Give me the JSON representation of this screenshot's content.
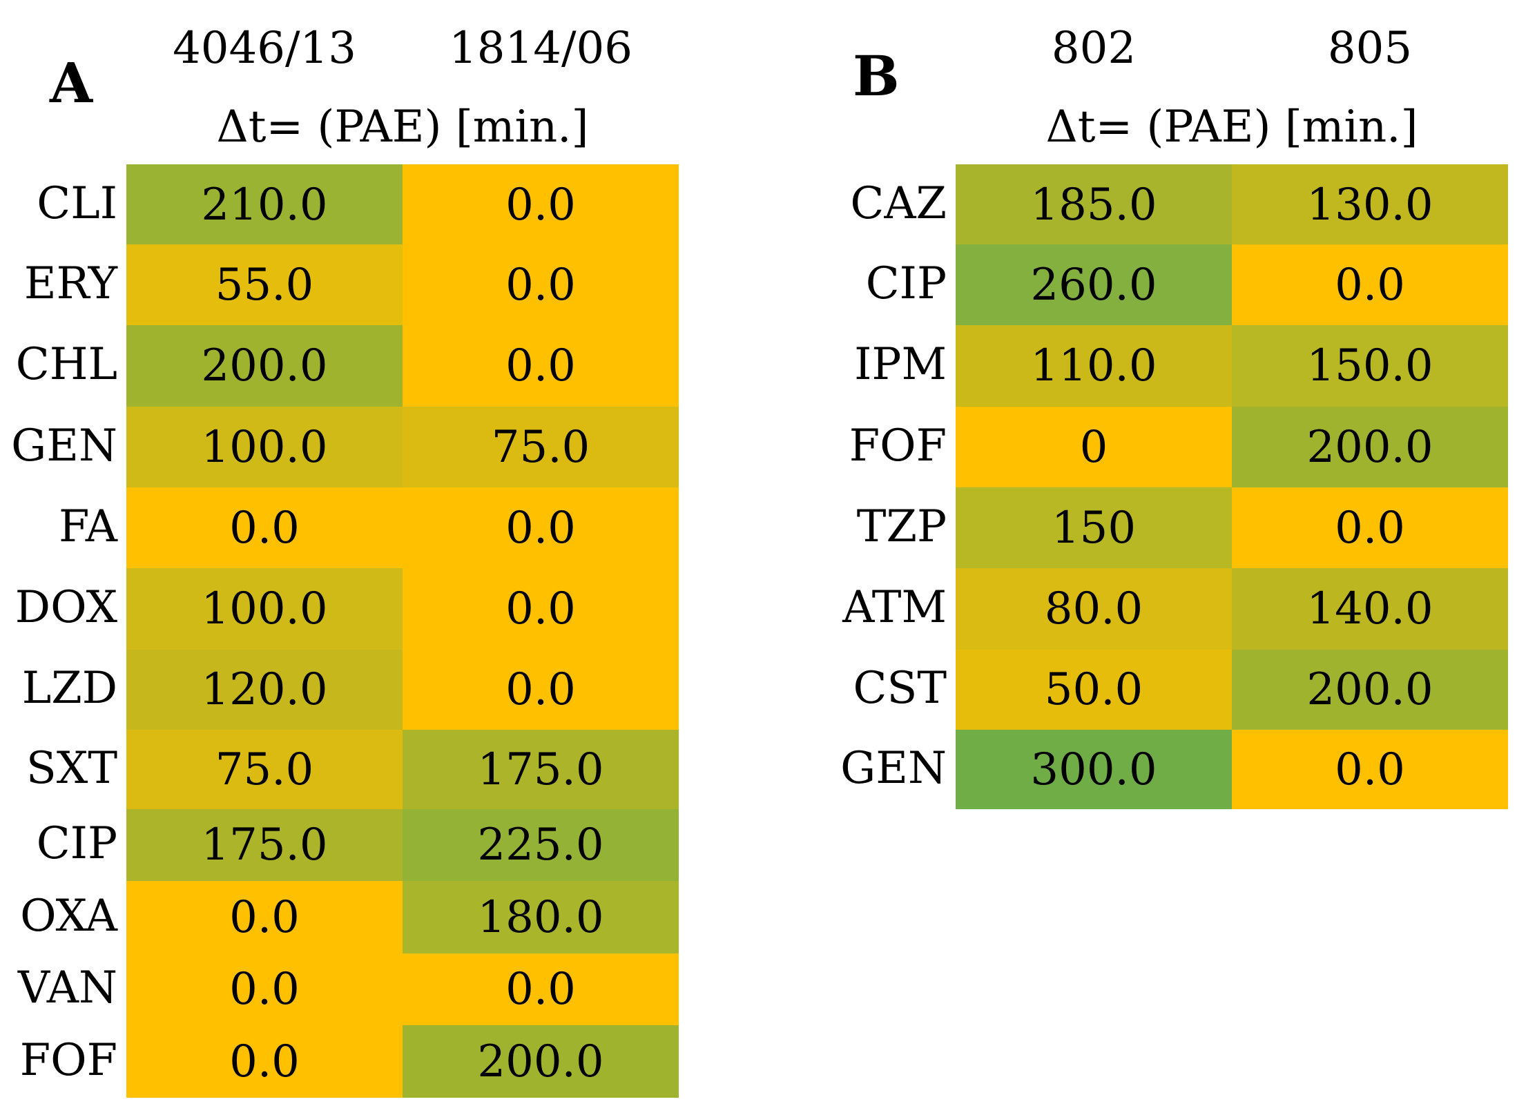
{
  "chart_data": [
    {
      "type": "heatmap",
      "panel": "A",
      "subtitle": "Δt= (PAE) [min.]",
      "columns": [
        "4046/13",
        "1814/06"
      ],
      "rows": [
        "CLI",
        "ERY",
        "CHL",
        "GEN",
        "FA",
        "DOX",
        "LZD",
        "SXT",
        "CIP",
        "OXA",
        "VAN",
        "FOF"
      ],
      "values": [
        [
          210.0,
          0.0
        ],
        [
          55.0,
          0.0
        ],
        [
          200.0,
          0.0
        ],
        [
          100.0,
          75.0
        ],
        [
          0.0,
          0.0
        ],
        [
          100.0,
          0.0
        ],
        [
          120.0,
          0.0
        ],
        [
          75.0,
          175.0
        ],
        [
          175.0,
          225.0
        ],
        [
          0.0,
          180.0
        ],
        [
          0.0,
          0.0
        ],
        [
          0.0,
          200.0
        ]
      ],
      "labels": [
        [
          "210.0",
          "0.0"
        ],
        [
          "55.0",
          "0.0"
        ],
        [
          "200.0",
          "0.0"
        ],
        [
          "100.0",
          "75.0"
        ],
        [
          "0.0",
          "0.0"
        ],
        [
          "100.0",
          "0.0"
        ],
        [
          "120.0",
          "0.0"
        ],
        [
          "75.0",
          "175.0"
        ],
        [
          "175.0",
          "225.0"
        ],
        [
          "0.0",
          "180.0"
        ],
        [
          "0.0",
          "0.0"
        ],
        [
          "0.0",
          "200.0"
        ]
      ],
      "color_scale": {
        "low": "#FFC000",
        "high": "#70AD47",
        "min": 0,
        "max": 300
      }
    },
    {
      "type": "heatmap",
      "panel": "B",
      "subtitle": "Δt= (PAE) [min.]",
      "columns": [
        "802",
        "805"
      ],
      "rows": [
        "CAZ",
        "CIP",
        "IPM",
        "FOF",
        "TZP",
        "ATM",
        "CST",
        "GEN"
      ],
      "values": [
        [
          185.0,
          130.0
        ],
        [
          260.0,
          0.0
        ],
        [
          110.0,
          150.0
        ],
        [
          0,
          200.0
        ],
        [
          150,
          0.0
        ],
        [
          80.0,
          140.0
        ],
        [
          50.0,
          200.0
        ],
        [
          300.0,
          0.0
        ]
      ],
      "labels": [
        [
          "185.0",
          "130.0"
        ],
        [
          "260.0",
          "0.0"
        ],
        [
          "110.0",
          "150.0"
        ],
        [
          "0",
          "200.0"
        ],
        [
          "150",
          "0.0"
        ],
        [
          "80.0",
          "140.0"
        ],
        [
          "50.0",
          "200.0"
        ],
        [
          "300.0",
          "0.0"
        ]
      ],
      "color_scale": {
        "low": "#FFC000",
        "high": "#70AD47",
        "min": 0,
        "max": 300
      }
    }
  ]
}
